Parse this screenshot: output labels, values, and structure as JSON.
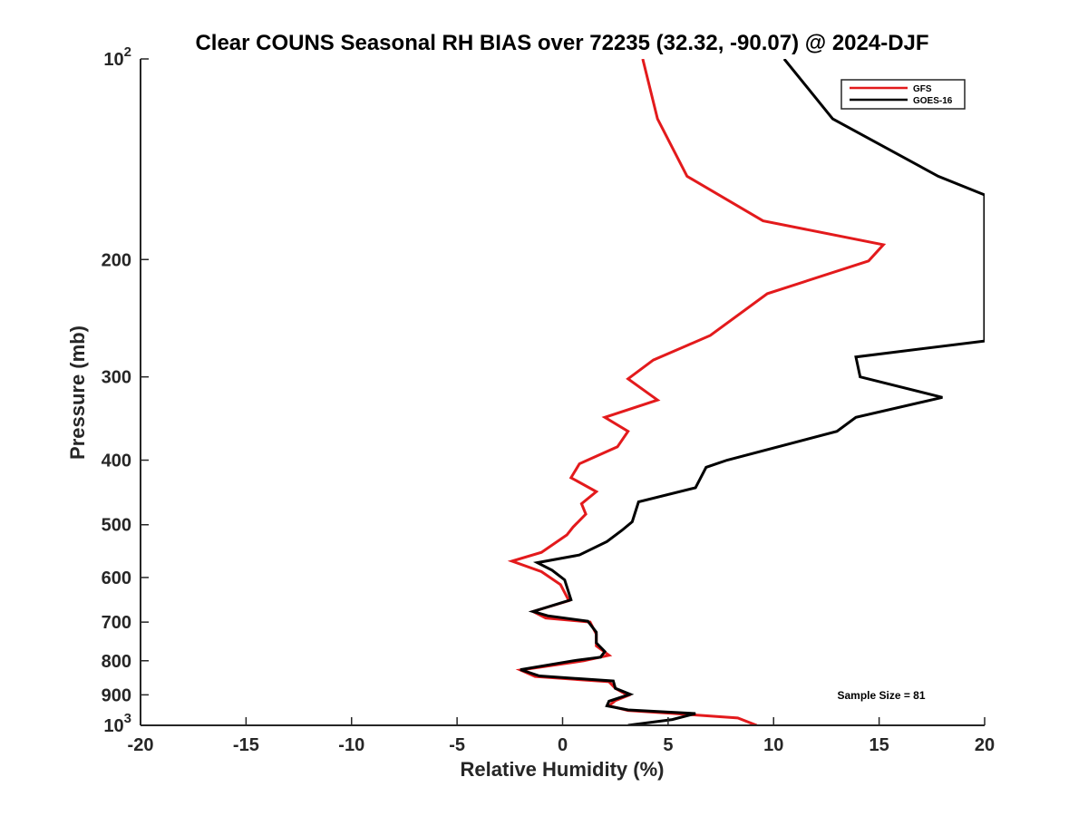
{
  "chart_data": {
    "type": "line",
    "title": "Clear COUNS Seasonal RH BIAS over 72235 (32.32, -90.07) @ 2024-DJF",
    "xlabel": "Relative Humidity (%)",
    "ylabel": "Pressure (mb)",
    "xlim": [
      -20,
      20
    ],
    "ylim": [
      100,
      1000
    ],
    "yscale": "log",
    "y_reversed": true,
    "grid": false,
    "legend_position": "top-right",
    "x_ticks": [
      {
        "value": -20,
        "label": "-20"
      },
      {
        "value": -15,
        "label": "-15"
      },
      {
        "value": -10,
        "label": "-10"
      },
      {
        "value": -5,
        "label": "-5"
      },
      {
        "value": 0,
        "label": "0"
      },
      {
        "value": 5,
        "label": "5"
      },
      {
        "value": 10,
        "label": "10"
      },
      {
        "value": 15,
        "label": "15"
      },
      {
        "value": 20,
        "label": "20"
      }
    ],
    "y_ticks": [
      {
        "value": 100,
        "base": "10",
        "exp": "2"
      },
      {
        "value": 200,
        "label": "200"
      },
      {
        "value": 300,
        "label": "300"
      },
      {
        "value": 400,
        "label": "400"
      },
      {
        "value": 500,
        "label": "500"
      },
      {
        "value": 600,
        "label": "600"
      },
      {
        "value": 700,
        "label": "700"
      },
      {
        "value": 800,
        "label": "800"
      },
      {
        "value": 900,
        "label": "900"
      },
      {
        "value": 1000,
        "base": "10",
        "exp": "3"
      }
    ],
    "series": [
      {
        "name": "GFS",
        "color": "#e31a1c",
        "points": [
          [
            3.8,
            100
          ],
          [
            4.5,
            123
          ],
          [
            5.9,
            150
          ],
          [
            9.5,
            175
          ],
          [
            15.2,
            190
          ],
          [
            14.5,
            201
          ],
          [
            9.7,
            225
          ],
          [
            7.0,
            260
          ],
          [
            4.3,
            283
          ],
          [
            3.1,
            302
          ],
          [
            4.5,
            325
          ],
          [
            2.0,
            345
          ],
          [
            3.1,
            362
          ],
          [
            2.6,
            382
          ],
          [
            0.8,
            405
          ],
          [
            0.4,
            425
          ],
          [
            1.6,
            446
          ],
          [
            0.9,
            465
          ],
          [
            1.1,
            482
          ],
          [
            0.5,
            504
          ],
          [
            0.2,
            518
          ],
          [
            -1.0,
            550
          ],
          [
            -2.4,
            567
          ],
          [
            -1.0,
            588
          ],
          [
            -0.1,
            615
          ],
          [
            0.3,
            650
          ],
          [
            -1.4,
            675
          ],
          [
            -0.8,
            690
          ],
          [
            1.3,
            700
          ],
          [
            1.6,
            730
          ],
          [
            1.6,
            760
          ],
          [
            2.2,
            785
          ],
          [
            1.0,
            800
          ],
          [
            -2.0,
            826
          ],
          [
            -1.3,
            845
          ],
          [
            2.2,
            860
          ],
          [
            2.5,
            880
          ],
          [
            3.1,
            902
          ],
          [
            2.5,
            918
          ],
          [
            2.2,
            935
          ],
          [
            3.1,
            950
          ],
          [
            5.3,
            960
          ],
          [
            8.3,
            975
          ],
          [
            9.2,
            1000
          ]
        ]
      },
      {
        "name": "GOES-16",
        "color": "#000000",
        "points": [
          [
            10.5,
            100
          ],
          [
            12.8,
            123
          ],
          [
            17.8,
            150
          ],
          [
            20.0,
            160
          ],
          [
            20.0,
            265
          ],
          [
            13.9,
            280
          ],
          [
            14.1,
            300
          ],
          [
            18.0,
            322
          ],
          [
            13.9,
            345
          ],
          [
            13.0,
            362
          ],
          [
            7.8,
            400
          ],
          [
            6.8,
            410
          ],
          [
            6.3,
            440
          ],
          [
            3.6,
            462
          ],
          [
            3.3,
            495
          ],
          [
            2.8,
            510
          ],
          [
            2.1,
            530
          ],
          [
            0.8,
            555
          ],
          [
            -1.2,
            570
          ],
          [
            -0.5,
            585
          ],
          [
            0.1,
            605
          ],
          [
            0.4,
            648
          ],
          [
            -1.4,
            675
          ],
          [
            -0.7,
            685
          ],
          [
            1.2,
            698
          ],
          [
            1.6,
            725
          ],
          [
            1.6,
            752
          ],
          [
            2.0,
            775
          ],
          [
            1.8,
            790
          ],
          [
            0.5,
            800
          ],
          [
            -2.0,
            825
          ],
          [
            -1.1,
            843
          ],
          [
            2.4,
            858
          ],
          [
            2.5,
            880
          ],
          [
            3.2,
            898
          ],
          [
            2.2,
            920
          ],
          [
            2.1,
            935
          ],
          [
            3.1,
            948
          ],
          [
            6.3,
            960
          ],
          [
            5.2,
            980
          ],
          [
            3.1,
            1000
          ]
        ]
      }
    ],
    "annotations": [
      {
        "text": "Sample Size = 81"
      }
    ]
  }
}
